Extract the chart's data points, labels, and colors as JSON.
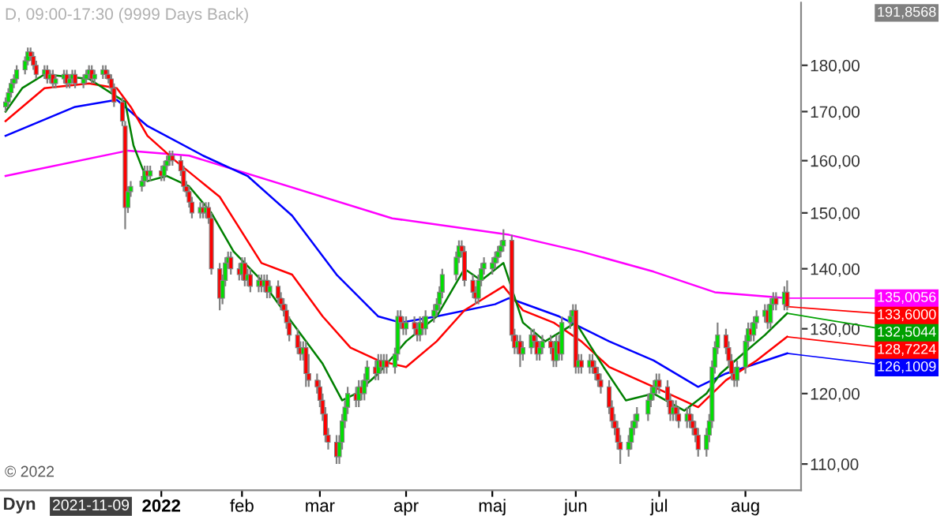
{
  "chart_data": {
    "type": "candlestick",
    "title": "D, 09:00-17:30 (9999 Days Back)",
    "log": true,
    "ylim": [
      106.5,
      194.5
    ],
    "yticks": [
      {
        "value": 110,
        "label": "110,00"
      },
      {
        "value": 120,
        "label": "120,00"
      },
      {
        "value": 130,
        "label": "130,00"
      },
      {
        "value": 140,
        "label": "140,00"
      },
      {
        "value": 150,
        "label": "150,00"
      },
      {
        "value": 160,
        "label": "160,00"
      },
      {
        "value": 170,
        "label": "170,00"
      },
      {
        "value": 180,
        "label": "180,00"
      }
    ],
    "xlim": [
      "2021-11-06",
      "2022-08-21"
    ],
    "xticks": [
      {
        "value": "2022-01-03",
        "label": "2022"
      },
      {
        "value": "2022-02-01",
        "label": "feb"
      },
      {
        "value": "2022-03-01",
        "label": "mar"
      },
      {
        "value": "2022-04-01",
        "label": "apr"
      },
      {
        "value": "2022-05-02",
        "label": "maj"
      },
      {
        "value": "2022-06-01",
        "label": "jun"
      },
      {
        "value": "2022-07-01",
        "label": "jul"
      },
      {
        "value": "2022-08-01",
        "label": "aug"
      }
    ],
    "x": [
      "2021-11-08",
      "2021-11-09",
      "2021-11-10",
      "2021-11-11",
      "2021-11-12",
      "2021-11-15",
      "2021-11-16",
      "2021-11-17",
      "2021-11-18",
      "2021-11-19",
      "2021-11-22",
      "2021-11-23",
      "2021-11-24",
      "2021-11-25",
      "2021-11-26",
      "2021-11-29",
      "2021-11-30",
      "2021-12-01",
      "2021-12-02",
      "2021-12-03",
      "2021-12-06",
      "2021-12-07",
      "2021-12-08",
      "2021-12-09",
      "2021-12-10",
      "2021-12-13",
      "2021-12-14",
      "2021-12-15",
      "2021-12-16",
      "2021-12-17",
      "2021-12-20",
      "2021-12-21",
      "2021-12-22",
      "2021-12-23",
      "2021-12-27",
      "2021-12-28",
      "2021-12-29",
      "2021-12-30",
      "2022-01-03",
      "2022-01-04",
      "2022-01-05",
      "2022-01-06",
      "2022-01-07",
      "2022-01-10",
      "2022-01-11",
      "2022-01-12",
      "2022-01-13",
      "2022-01-14",
      "2022-01-17",
      "2022-01-18",
      "2022-01-19",
      "2022-01-20",
      "2022-01-21",
      "2022-01-24",
      "2022-01-25",
      "2022-01-26",
      "2022-01-27",
      "2022-01-28",
      "2022-01-31",
      "2022-02-01",
      "2022-02-02",
      "2022-02-03",
      "2022-02-04",
      "2022-02-07",
      "2022-02-08",
      "2022-02-09",
      "2022-02-10",
      "2022-02-11",
      "2022-02-14",
      "2022-02-15",
      "2022-02-16",
      "2022-02-17",
      "2022-02-18",
      "2022-02-21",
      "2022-02-22",
      "2022-02-23",
      "2022-02-24",
      "2022-02-25",
      "2022-02-28",
      "2022-03-01",
      "2022-03-02",
      "2022-03-03",
      "2022-03-04",
      "2022-03-07",
      "2022-03-08",
      "2022-03-09",
      "2022-03-10",
      "2022-03-11",
      "2022-03-14",
      "2022-03-15",
      "2022-03-16",
      "2022-03-17",
      "2022-03-18",
      "2022-03-21",
      "2022-03-22",
      "2022-03-23",
      "2022-03-24",
      "2022-03-25",
      "2022-03-28",
      "2022-03-29",
      "2022-03-30",
      "2022-03-31",
      "2022-04-01",
      "2022-04-04",
      "2022-04-05",
      "2022-04-06",
      "2022-04-07",
      "2022-04-08",
      "2022-04-11",
      "2022-04-12",
      "2022-04-13",
      "2022-04-14",
      "2022-04-19",
      "2022-04-20",
      "2022-04-21",
      "2022-04-22",
      "2022-04-25",
      "2022-04-26",
      "2022-04-27",
      "2022-04-28",
      "2022-04-29",
      "2022-05-02",
      "2022-05-03",
      "2022-05-04",
      "2022-05-05",
      "2022-05-06",
      "2022-05-09",
      "2022-05-10",
      "2022-05-11",
      "2022-05-12",
      "2022-05-13",
      "2022-05-16",
      "2022-05-17",
      "2022-05-18",
      "2022-05-19",
      "2022-05-20",
      "2022-05-23",
      "2022-05-24",
      "2022-05-25",
      "2022-05-26",
      "2022-05-27",
      "2022-05-30",
      "2022-05-31",
      "2022-06-01",
      "2022-06-02",
      "2022-06-03",
      "2022-06-06",
      "2022-06-07",
      "2022-06-08",
      "2022-06-09",
      "2022-06-10",
      "2022-06-13",
      "2022-06-14",
      "2022-06-15",
      "2022-06-16",
      "2022-06-17",
      "2022-06-20",
      "2022-06-21",
      "2022-06-22",
      "2022-06-23",
      "2022-06-27",
      "2022-06-28",
      "2022-06-29",
      "2022-06-30",
      "2022-07-01",
      "2022-07-04",
      "2022-07-05",
      "2022-07-06",
      "2022-07-07",
      "2022-07-08",
      "2022-07-11",
      "2022-07-12",
      "2022-07-13",
      "2022-07-14",
      "2022-07-15",
      "2022-07-18",
      "2022-07-19",
      "2022-07-20",
      "2022-07-21",
      "2022-07-22",
      "2022-07-25",
      "2022-07-26",
      "2022-07-27",
      "2022-07-28",
      "2022-07-29",
      "2022-08-01",
      "2022-08-02",
      "2022-08-03",
      "2022-08-04",
      "2022-08-05",
      "2022-08-08",
      "2022-08-09",
      "2022-08-10",
      "2022-08-11",
      "2022-08-12",
      "2022-08-15",
      "2022-08-16"
    ],
    "ohlc": [
      [
        171,
        173,
        170,
        172
      ],
      [
        172,
        175,
        171,
        174
      ],
      [
        174,
        177,
        173,
        176
      ],
      [
        176,
        178,
        175,
        177
      ],
      [
        177,
        180,
        176,
        179
      ],
      [
        179,
        182,
        178,
        181
      ],
      [
        181,
        184,
        180,
        183
      ],
      [
        183,
        184,
        181,
        182
      ],
      [
        182,
        183,
        179,
        180
      ],
      [
        180,
        181,
        177,
        178
      ],
      [
        178,
        180,
        177,
        179
      ],
      [
        179,
        180,
        176,
        177
      ],
      [
        177,
        179,
        176,
        178
      ],
      [
        178,
        179,
        175,
        176
      ],
      [
        176,
        178,
        175,
        177
      ],
      [
        177,
        179,
        176,
        178
      ],
      [
        178,
        179,
        175,
        176
      ],
      [
        176,
        178,
        175,
        177
      ],
      [
        177,
        179,
        176,
        178
      ],
      [
        178,
        179,
        175,
        176
      ],
      [
        176,
        178,
        175,
        177
      ],
      [
        177,
        179,
        176,
        178
      ],
      [
        178,
        180,
        177,
        179
      ],
      [
        179,
        180,
        176,
        177
      ],
      [
        177,
        179,
        176,
        178
      ],
      [
        178,
        180,
        177,
        179
      ],
      [
        179,
        180,
        177,
        178
      ],
      [
        178,
        179,
        176,
        177
      ],
      [
        177,
        178,
        174,
        175
      ],
      [
        175,
        176,
        171,
        172
      ],
      [
        172,
        173,
        167,
        168
      ],
      [
        167,
        168,
        147,
        151
      ],
      [
        151,
        155,
        150,
        154
      ],
      [
        154,
        156,
        153,
        155
      ],
      [
        155,
        157,
        154,
        156
      ],
      [
        156,
        159,
        155,
        158
      ],
      [
        158,
        159,
        156,
        157
      ],
      [
        157,
        159,
        156,
        158
      ],
      [
        158,
        159,
        156,
        157
      ],
      [
        157,
        160,
        156,
        159
      ],
      [
        159,
        161,
        158,
        160
      ],
      [
        160,
        162,
        159,
        161
      ],
      [
        161,
        162,
        159,
        160
      ],
      [
        160,
        161,
        157,
        158
      ],
      [
        158,
        159,
        154,
        155
      ],
      [
        155,
        156,
        153,
        154
      ],
      [
        154,
        155,
        151,
        152
      ],
      [
        152,
        153,
        149,
        150
      ],
      [
        150,
        152,
        149,
        151
      ],
      [
        151,
        152,
        149,
        150
      ],
      [
        150,
        152,
        149,
        151
      ],
      [
        151,
        152,
        148,
        149
      ],
      [
        149,
        150,
        139,
        140
      ],
      [
        140,
        141,
        133,
        135
      ],
      [
        135,
        139,
        134,
        138
      ],
      [
        138,
        142,
        137,
        141
      ],
      [
        141,
        143,
        140,
        142
      ],
      [
        142,
        143,
        139,
        140
      ],
      [
        140,
        141,
        138,
        139
      ],
      [
        139,
        142,
        138,
        141
      ],
      [
        141,
        142,
        137,
        138
      ],
      [
        138,
        140,
        137,
        139
      ],
      [
        139,
        140,
        136,
        137
      ],
      [
        137,
        139,
        136,
        138
      ],
      [
        138,
        139,
        136,
        137
      ],
      [
        137,
        139,
        136,
        138
      ],
      [
        138,
        139,
        135,
        136
      ],
      [
        136,
        138,
        135,
        137
      ],
      [
        137,
        138,
        134,
        135
      ],
      [
        135,
        136,
        133,
        134
      ],
      [
        134,
        135,
        132,
        133
      ],
      [
        133,
        134,
        130,
        131
      ],
      [
        131,
        132,
        128,
        129
      ],
      [
        129,
        130,
        126,
        127
      ],
      [
        127,
        128,
        125,
        126
      ],
      [
        126,
        128,
        125,
        127
      ],
      [
        127,
        128,
        121,
        123
      ],
      [
        123,
        126,
        121,
        122
      ],
      [
        122,
        123,
        120,
        121
      ],
      [
        121,
        122,
        118,
        119
      ],
      [
        119,
        120,
        116,
        117
      ],
      [
        117,
        118,
        113,
        114
      ],
      [
        114,
        115,
        112,
        113
      ],
      [
        113,
        114,
        110,
        111
      ],
      [
        111,
        114,
        110,
        113
      ],
      [
        113,
        117,
        112,
        116
      ],
      [
        116,
        119,
        115,
        118
      ],
      [
        118,
        121,
        117,
        120
      ],
      [
        120,
        121,
        118,
        119
      ],
      [
        119,
        122,
        118,
        121
      ],
      [
        121,
        122,
        119,
        120
      ],
      [
        120,
        123,
        119,
        122
      ],
      [
        122,
        125,
        121,
        124
      ],
      [
        124,
        125,
        122,
        123
      ],
      [
        123,
        126,
        122,
        125
      ],
      [
        125,
        126,
        123,
        124
      ],
      [
        124,
        126,
        123,
        125
      ],
      [
        125,
        126,
        123,
        124
      ],
      [
        124,
        127,
        123,
        126
      ],
      [
        126,
        133,
        125,
        132
      ],
      [
        132,
        133,
        130,
        131
      ],
      [
        131,
        132,
        129,
        130
      ],
      [
        130,
        132,
        129,
        131
      ],
      [
        131,
        132,
        129,
        130
      ],
      [
        130,
        131,
        128,
        129
      ],
      [
        129,
        132,
        128,
        131
      ],
      [
        131,
        132,
        129,
        130
      ],
      [
        130,
        133,
        129,
        132
      ],
      [
        132,
        134,
        131,
        133
      ],
      [
        133,
        135,
        132,
        134
      ],
      [
        134,
        137,
        133,
        136
      ],
      [
        136,
        140,
        135,
        139
      ],
      [
        139,
        143,
        138,
        142
      ],
      [
        142,
        145,
        141,
        144
      ],
      [
        144,
        145,
        142,
        143
      ],
      [
        143,
        144,
        137,
        138
      ],
      [
        138,
        139,
        135,
        136
      ],
      [
        136,
        137,
        134,
        135
      ],
      [
        135,
        139,
        134,
        138
      ],
      [
        138,
        141,
        137,
        140
      ],
      [
        140,
        142,
        139,
        141
      ],
      [
        140,
        142,
        139,
        141
      ],
      [
        141,
        143,
        140,
        142
      ],
      [
        142,
        144,
        141,
        143
      ],
      [
        143,
        145,
        142,
        144
      ],
      [
        144,
        147,
        143,
        145
      ],
      [
        145,
        146,
        128,
        129
      ],
      [
        129,
        130,
        126,
        127
      ],
      [
        127,
        129,
        126,
        128
      ],
      [
        128,
        129,
        124,
        126
      ],
      [
        126,
        128,
        125,
        127
      ],
      [
        127,
        130,
        126,
        129
      ],
      [
        129,
        130,
        127,
        128
      ],
      [
        128,
        129,
        125,
        126
      ],
      [
        126,
        128,
        125,
        127
      ],
      [
        127,
        129,
        126,
        128
      ],
      [
        128,
        129,
        126,
        127
      ],
      [
        127,
        128,
        124,
        125
      ],
      [
        125,
        129,
        124,
        128
      ],
      [
        128,
        129,
        125,
        126
      ],
      [
        126,
        132,
        125,
        131
      ],
      [
        131,
        133,
        130,
        132
      ],
      [
        132,
        134,
        131,
        133
      ],
      [
        133,
        134,
        123,
        124
      ],
      [
        124,
        126,
        123,
        125
      ],
      [
        125,
        126,
        123,
        124
      ],
      [
        124,
        126,
        123,
        125
      ],
      [
        125,
        126,
        123,
        124
      ],
      [
        124,
        125,
        122,
        123
      ],
      [
        123,
        124,
        121,
        122
      ],
      [
        122,
        123,
        120,
        121
      ],
      [
        121,
        122,
        117,
        118
      ],
      [
        118,
        119,
        115,
        116
      ],
      [
        116,
        117,
        114,
        115
      ],
      [
        115,
        116,
        112,
        113
      ],
      [
        113,
        114,
        110,
        112
      ],
      [
        112,
        114,
        111,
        113
      ],
      [
        113,
        116,
        112,
        115
      ],
      [
        115,
        117,
        114,
        116
      ],
      [
        116,
        118,
        115,
        117
      ],
      [
        117,
        120,
        116,
        119
      ],
      [
        119,
        121,
        118,
        120
      ],
      [
        120,
        122,
        119,
        121
      ],
      [
        121,
        123,
        120,
        122
      ],
      [
        122,
        123,
        120,
        121
      ],
      [
        121,
        122,
        118,
        119
      ],
      [
        119,
        120,
        116,
        117
      ],
      [
        117,
        119,
        116,
        118
      ],
      [
        118,
        119,
        116,
        117
      ],
      [
        117,
        118,
        115,
        116
      ],
      [
        116,
        118,
        115,
        117
      ],
      [
        117,
        118,
        115,
        116
      ],
      [
        116,
        117,
        114,
        115
      ],
      [
        115,
        116,
        113,
        114
      ],
      [
        114,
        115,
        111,
        112
      ],
      [
        112,
        115,
        111,
        114
      ],
      [
        114,
        117,
        113,
        116
      ],
      [
        116,
        125,
        115,
        124
      ],
      [
        124,
        128,
        123,
        127
      ],
      [
        127,
        131,
        126,
        129
      ],
      [
        129,
        130,
        126,
        127
      ],
      [
        127,
        128,
        124,
        125
      ],
      [
        125,
        126,
        122,
        123
      ],
      [
        123,
        124,
        121,
        122
      ],
      [
        122,
        125,
        121,
        124
      ],
      [
        124,
        129,
        123,
        128
      ],
      [
        128,
        131,
        127,
        130
      ],
      [
        130,
        131,
        128,
        129
      ],
      [
        129,
        132,
        128,
        131
      ],
      [
        131,
        133,
        130,
        132
      ],
      [
        132,
        134,
        131,
        133
      ],
      [
        133,
        134,
        130,
        131
      ],
      [
        131,
        135,
        130,
        134
      ],
      [
        134,
        136,
        133,
        135
      ],
      [
        135,
        136,
        133,
        134
      ],
      [
        134,
        137,
        133,
        136
      ],
      [
        136,
        138,
        133,
        133.6
      ]
    ],
    "series": [
      {
        "type": "line",
        "color": "#ff00ff",
        "x": [
          "2021-11-08",
          "2021-12-22",
          "2022-01-13",
          "2022-03-27",
          "2022-05-08",
          "2022-06-03",
          "2022-06-29",
          "2022-07-21",
          "2022-08-16"
        ],
        "values": [
          157,
          162,
          161,
          149,
          146,
          143,
          139.5,
          136,
          135.0056
        ]
      },
      {
        "type": "line",
        "color": "#0000ff",
        "x": [
          "2021-11-08",
          "2021-12-03",
          "2021-12-18",
          "2021-12-29",
          "2022-01-18",
          "2022-02-03",
          "2022-02-19",
          "2022-03-07",
          "2022-03-22",
          "2022-03-30",
          "2022-04-12",
          "2022-05-03",
          "2022-05-08",
          "2022-05-26",
          "2022-06-13",
          "2022-06-29",
          "2022-07-15",
          "2022-07-25",
          "2022-08-16"
        ],
        "values": [
          165,
          171,
          172.5,
          167,
          161,
          157,
          149.5,
          139,
          132,
          131,
          132,
          134,
          135,
          132,
          128,
          125,
          121,
          123,
          126.1009
        ]
      },
      {
        "type": "line",
        "color": "#ff0000",
        "x": [
          "2021-11-08",
          "2021-11-22",
          "2021-12-08",
          "2021-12-18",
          "2021-12-23",
          "2021-12-29",
          "2022-01-08",
          "2022-01-24",
          "2022-02-08",
          "2022-02-19",
          "2022-03-02",
          "2022-03-12",
          "2022-03-22",
          "2022-04-01",
          "2022-04-12",
          "2022-04-22",
          "2022-05-06",
          "2022-05-13",
          "2022-05-24",
          "2022-06-03",
          "2022-06-13",
          "2022-06-29",
          "2022-07-15",
          "2022-07-25",
          "2022-08-05",
          "2022-08-16"
        ],
        "values": [
          168,
          175,
          176,
          175,
          171,
          165,
          160,
          153,
          141,
          139,
          132,
          127,
          125,
          124,
          128,
          133,
          137,
          133,
          131,
          128,
          124,
          121,
          118,
          122,
          125,
          128.7224
        ]
      },
      {
        "type": "line",
        "color": "#008000",
        "x": [
          "2021-11-08",
          "2021-11-14",
          "2021-11-22",
          "2021-12-08",
          "2021-12-21",
          "2021-12-24",
          "2021-12-29",
          "2022-01-05",
          "2022-01-13",
          "2022-01-21",
          "2022-01-29",
          "2022-02-08",
          "2022-02-19",
          "2022-03-02",
          "2022-03-09",
          "2022-03-14",
          "2022-03-22",
          "2022-04-01",
          "2022-04-12",
          "2022-04-22",
          "2022-04-28",
          "2022-05-06",
          "2022-05-13",
          "2022-05-21",
          "2022-06-01",
          "2022-06-11",
          "2022-06-19",
          "2022-06-29",
          "2022-07-10",
          "2022-07-18",
          "2022-07-23",
          "2022-07-31",
          "2022-08-08",
          "2022-08-16"
        ],
        "values": [
          170,
          175,
          178,
          177,
          172,
          163,
          156,
          157,
          155,
          150,
          143,
          138,
          131,
          124.5,
          119,
          120,
          123,
          128,
          132,
          140,
          138,
          141,
          131,
          128,
          131,
          124,
          119,
          120,
          117.5,
          120,
          123,
          126,
          129,
          132.5044
        ]
      }
    ],
    "annotations": [
      {
        "text": "135,0056",
        "x": "2022-08-16",
        "y": 135.0056
      },
      {
        "text": "133,6000",
        "x": "2022-08-16",
        "y": 133.6
      },
      {
        "text": "132,5044",
        "x": "2022-08-16",
        "y": 132.5044
      },
      {
        "text": "128,7224",
        "x": "2022-08-16",
        "y": 128.7224
      },
      {
        "text": "126,1009",
        "x": "2022-08-16",
        "y": 126.1009
      },
      "Dyn",
      "2021-11-09",
      "© 2022",
      "191,8568"
    ]
  }
}
